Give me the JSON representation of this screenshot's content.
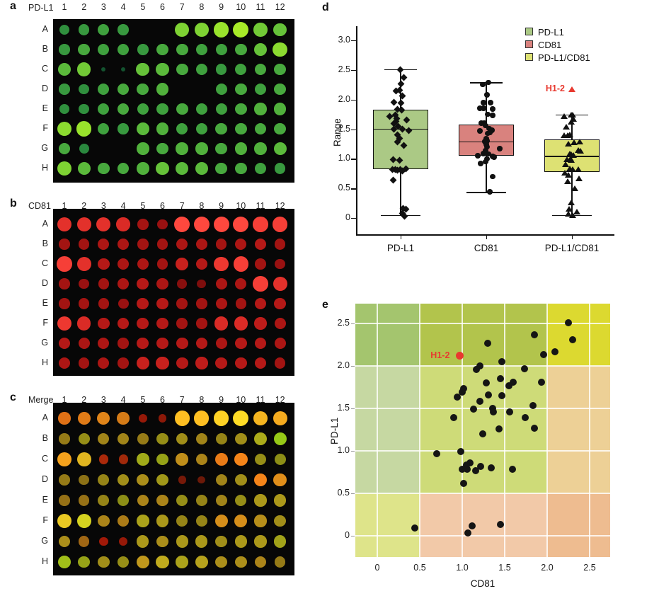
{
  "accent_red": "#e8392f",
  "microarray": {
    "columns": [
      "1",
      "2",
      "3",
      "4",
      "5",
      "6",
      "7",
      "8",
      "9",
      "10",
      "11",
      "12"
    ],
    "rows": [
      "A",
      "B",
      "C",
      "D",
      "E",
      "F",
      "G",
      "H"
    ],
    "panels": [
      {
        "id": "a",
        "letter": "a",
        "label": "PD-L1",
        "channel": "green",
        "intensities": [
          [
            0.45,
            0.5,
            0.55,
            0.5,
            0,
            0,
            0.85,
            0.85,
            0.95,
            1.0,
            0.8,
            0.75
          ],
          [
            0.5,
            0.6,
            0.55,
            0.55,
            0.5,
            0.6,
            0.6,
            0.55,
            0.55,
            0.6,
            0.75,
            0.9
          ],
          [
            0.7,
            0.8,
            0.08,
            0.08,
            0.75,
            0.7,
            0.6,
            0.55,
            0.5,
            0.55,
            0.6,
            0.6
          ],
          [
            0.5,
            0.45,
            0.55,
            0.6,
            0.6,
            0.65,
            0,
            0,
            0.55,
            0.6,
            0.55,
            0.6
          ],
          [
            0.45,
            0.45,
            0.55,
            0.6,
            0.55,
            0.55,
            0.6,
            0.55,
            0.55,
            0.6,
            0.65,
            0.65
          ],
          [
            0.9,
            0.95,
            0.55,
            0.5,
            0.7,
            0.65,
            0.55,
            0.55,
            0.6,
            0.6,
            0.6,
            0.6
          ],
          [
            0.6,
            0.4,
            0,
            0,
            0.65,
            0.6,
            0.65,
            0.65,
            0.6,
            0.65,
            0.65,
            0.7
          ],
          [
            0.85,
            0.7,
            0.6,
            0.6,
            0.65,
            0.75,
            0.7,
            0.7,
            0.6,
            0.6,
            0.55,
            0.5
          ]
        ]
      },
      {
        "id": "b",
        "letter": "b",
        "label": "CD81",
        "channel": "red",
        "intensities": [
          [
            0.85,
            0.85,
            0.85,
            0.8,
            0.5,
            0.45,
            1.0,
            1.0,
            1.0,
            1.0,
            0.95,
            0.95
          ],
          [
            0.5,
            0.5,
            0.55,
            0.55,
            0.5,
            0.5,
            0.55,
            0.55,
            0.5,
            0.55,
            0.6,
            0.5
          ],
          [
            0.95,
            0.85,
            0.6,
            0.55,
            0.55,
            0.5,
            0.7,
            0.6,
            0.9,
            0.95,
            0.5,
            0.45
          ],
          [
            0.5,
            0.45,
            0.5,
            0.55,
            0.6,
            0.55,
            0.35,
            0.3,
            0.55,
            0.55,
            0.95,
            0.85
          ],
          [
            0.5,
            0.5,
            0.5,
            0.45,
            0.6,
            0.6,
            0.5,
            0.5,
            0.55,
            0.5,
            0.6,
            0.6
          ],
          [
            0.9,
            0.8,
            0.6,
            0.6,
            0.6,
            0.6,
            0.5,
            0.5,
            0.8,
            0.8,
            0.65,
            0.55
          ],
          [
            0.6,
            0.55,
            0.55,
            0.5,
            0.6,
            0.6,
            0.6,
            0.6,
            0.55,
            0.6,
            0.6,
            0.55
          ],
          [
            0.55,
            0.5,
            0.55,
            0.5,
            0.7,
            0.7,
            0.6,
            0.65,
            0.6,
            0.6,
            0.6,
            0.5
          ]
        ]
      },
      {
        "id": "c",
        "letter": "c",
        "label": "Merge",
        "channel": "merge"
      }
    ]
  },
  "chart_data": [
    {
      "id": "d",
      "panel_letter": "d",
      "type": "box",
      "ylabel": "Range",
      "categories": [
        "PD-L1",
        "CD81",
        "PD-L1/CD81"
      ],
      "ytick_values": [
        0,
        0.5,
        1.0,
        1.5,
        2.0,
        2.5,
        3.0
      ],
      "ytick_labels": [
        "0",
        "0.5",
        "1.0",
        "1.5",
        "2.0",
        "2.5",
        "3.0"
      ],
      "ylim": [
        -0.28,
        3.25
      ],
      "legend": [
        {
          "label": "PD-L1",
          "color": "#abc985"
        },
        {
          "label": "CD81",
          "color": "#d9827e"
        },
        {
          "label": "PD-L1/CD81",
          "color": "#dde173"
        }
      ],
      "boxes": [
        {
          "category": "PD-L1",
          "color": "#abc985",
          "marker": "diamond",
          "q1": 0.83,
          "median": 1.51,
          "q3": 1.83,
          "whisker_low": 0.05,
          "whisker_high": 2.51,
          "points": [
            [
              -1,
              2.51
            ],
            [
              4,
              2.37
            ],
            [
              0,
              2.27
            ],
            [
              -2,
              2.16
            ],
            [
              -7,
              2.14
            ],
            [
              2,
              2.06
            ],
            [
              -10,
              1.96
            ],
            [
              0,
              1.94
            ],
            [
              -5,
              1.83
            ],
            [
              1,
              1.82
            ],
            [
              -8,
              1.74
            ],
            [
              -16,
              1.72
            ],
            [
              -6,
              1.68
            ],
            [
              8,
              1.66
            ],
            [
              -7,
              1.63
            ],
            [
              -10,
              1.59
            ],
            [
              -4,
              1.55
            ],
            [
              -10,
              1.5
            ],
            [
              2,
              1.5
            ],
            [
              11,
              1.48
            ],
            [
              -5,
              1.41
            ],
            [
              -2,
              1.34
            ],
            [
              -5,
              1.28
            ],
            [
              4,
              1.22
            ],
            [
              -11,
              0.99
            ],
            [
              -2,
              0.98
            ],
            [
              -12,
              0.82
            ],
            [
              -8,
              0.82
            ],
            [
              -5,
              0.81
            ],
            [
              -1,
              0.82
            ],
            [
              2,
              0.8
            ],
            [
              7,
              0.83
            ],
            [
              -11,
              0.64
            ],
            [
              3,
              0.16
            ],
            [
              7,
              0.15
            ],
            [
              2,
              0.08
            ],
            [
              5,
              0.03
            ]
          ]
        },
        {
          "category": "CD81",
          "color": "#d9827e",
          "marker": "circle",
          "q1": 1.05,
          "median": 1.29,
          "q3": 1.58,
          "whisker_low": 0.44,
          "whisker_high": 2.29,
          "points": [
            [
              3,
              2.29
            ],
            [
              -5,
              2.25
            ],
            [
              1,
              2.08
            ],
            [
              -4,
              1.95
            ],
            [
              6,
              1.95
            ],
            [
              -9,
              1.85
            ],
            [
              -4,
              1.85
            ],
            [
              9,
              1.84
            ],
            [
              2,
              1.75
            ],
            [
              9,
              1.73
            ],
            [
              -7,
              1.6
            ],
            [
              -3,
              1.6
            ],
            [
              -1,
              1.56
            ],
            [
              4,
              1.51
            ],
            [
              6,
              1.49
            ],
            [
              8,
              1.48
            ],
            [
              5,
              1.44
            ],
            [
              2,
              1.43
            ],
            [
              -9,
              1.47
            ],
            [
              0,
              1.34
            ],
            [
              1,
              1.3
            ],
            [
              -2,
              1.29
            ],
            [
              0,
              1.24
            ],
            [
              1,
              1.2
            ],
            [
              19,
              1.17
            ],
            [
              -1,
              1.14
            ],
            [
              -4,
              1.09
            ],
            [
              3,
              1.08
            ],
            [
              -12,
              1.05
            ],
            [
              9,
              1.04
            ],
            [
              1,
              1.0
            ],
            [
              11,
              1.03
            ],
            [
              -1,
              0.95
            ],
            [
              -8,
              0.92
            ],
            [
              9,
              0.7
            ],
            [
              5,
              0.44
            ]
          ]
        },
        {
          "category": "PD-L1/CD81",
          "color": "#dde173",
          "marker": "triangle",
          "q1": 0.78,
          "median": 1.05,
          "q3": 1.33,
          "whisker_low": 0.05,
          "whisker_high": 1.75,
          "points": [
            [
              -1,
              1.75
            ],
            [
              1,
              1.74
            ],
            [
              -11,
              1.72
            ],
            [
              2,
              1.67
            ],
            [
              -1,
              1.63
            ],
            [
              -8,
              1.54
            ],
            [
              -3,
              1.41
            ],
            [
              -11,
              1.4
            ],
            [
              -6,
              1.4
            ],
            [
              3,
              1.28
            ],
            [
              11,
              1.29
            ],
            [
              -5,
              1.25
            ],
            [
              9,
              1.15
            ],
            [
              12,
              1.14
            ],
            [
              -3,
              1.09
            ],
            [
              -1,
              1.08
            ],
            [
              2,
              1.06
            ],
            [
              -2,
              1.01
            ],
            [
              -7,
              0.99
            ],
            [
              -1,
              0.98
            ],
            [
              -9,
              0.91
            ],
            [
              -3,
              0.84
            ],
            [
              1,
              0.82
            ],
            [
              9,
              0.83
            ],
            [
              -10,
              0.76
            ],
            [
              -5,
              0.73
            ],
            [
              10,
              0.67
            ],
            [
              -6,
              0.62
            ],
            [
              4,
              0.5
            ],
            [
              -1,
              0.26
            ],
            [
              -4,
              0.16
            ],
            [
              7,
              0.11
            ],
            [
              -5,
              0.07
            ],
            [
              1,
              0.05
            ]
          ]
        }
      ],
      "annotation": {
        "label": "H1-2",
        "marker": "triangle",
        "color": "#e8392f",
        "category": "PD-L1/CD81",
        "value": 2.17
      }
    },
    {
      "id": "e",
      "panel_letter": "e",
      "type": "scatter",
      "xlabel": "CD81",
      "ylabel": "PD-L1",
      "xtick_values": [
        0,
        0.5,
        1.0,
        1.5,
        2.0,
        2.5
      ],
      "xtick_labels": [
        "0",
        "0.5",
        "1.0",
        "1.5",
        "2.0",
        "2.5"
      ],
      "ytick_values": [
        0,
        0.5,
        1.0,
        1.5,
        2.0,
        2.5
      ],
      "ytick_labels": [
        "0",
        "0.5",
        "1.0",
        "1.5",
        "2.0",
        "2.5"
      ],
      "xlim": [
        -0.26,
        2.74
      ],
      "ylim": [
        -0.25,
        2.75
      ],
      "region_bounds": {
        "x": [
          0.5,
          2.0
        ],
        "y": [
          0.5,
          2.0
        ]
      },
      "region_colors_rows_top_to_bottom": [
        [
          "#a4c56e",
          "#b2c44c",
          "#dcd930"
        ],
        [
          "#c6d8a2",
          "#cedb78",
          "#edd096"
        ],
        [
          "#dee48a",
          "#f2c9a8",
          "#eebc90"
        ]
      ],
      "point_color": "#151515",
      "points": [
        [
          2.25,
          2.51
        ],
        [
          1.85,
          2.37
        ],
        [
          2.3,
          2.31
        ],
        [
          1.3,
          2.27
        ],
        [
          2.09,
          2.17
        ],
        [
          1.96,
          2.13
        ],
        [
          1.47,
          2.05
        ],
        [
          1.21,
          2.0
        ],
        [
          1.17,
          1.96
        ],
        [
          1.73,
          1.97
        ],
        [
          1.45,
          1.85
        ],
        [
          1.6,
          1.81
        ],
        [
          1.28,
          1.8
        ],
        [
          1.93,
          1.81
        ],
        [
          1.55,
          1.77
        ],
        [
          1.02,
          1.73
        ],
        [
          1.0,
          1.69
        ],
        [
          1.31,
          1.66
        ],
        [
          0.94,
          1.63
        ],
        [
          1.47,
          1.65
        ],
        [
          1.21,
          1.58
        ],
        [
          1.83,
          1.53
        ],
        [
          1.13,
          1.49
        ],
        [
          1.36,
          1.5
        ],
        [
          1.37,
          1.46
        ],
        [
          1.56,
          1.46
        ],
        [
          0.9,
          1.39
        ],
        [
          1.74,
          1.39
        ],
        [
          1.85,
          1.27
        ],
        [
          1.43,
          1.26
        ],
        [
          1.24,
          1.2
        ],
        [
          0.7,
          0.97
        ],
        [
          0.98,
          0.99
        ],
        [
          1.09,
          0.86
        ],
        [
          1.05,
          0.83
        ],
        [
          1.22,
          0.82
        ],
        [
          1.34,
          0.8
        ],
        [
          1.0,
          0.78
        ],
        [
          1.06,
          0.78
        ],
        [
          1.16,
          0.77
        ],
        [
          1.59,
          0.78
        ],
        [
          1.02,
          0.62
        ],
        [
          0.44,
          0.09
        ],
        [
          1.12,
          0.12
        ],
        [
          1.45,
          0.13
        ],
        [
          1.07,
          0.03
        ]
      ],
      "annotation": {
        "label": "H1-2",
        "x": 0.97,
        "y": 2.12,
        "color": "#e8392f"
      }
    }
  ]
}
